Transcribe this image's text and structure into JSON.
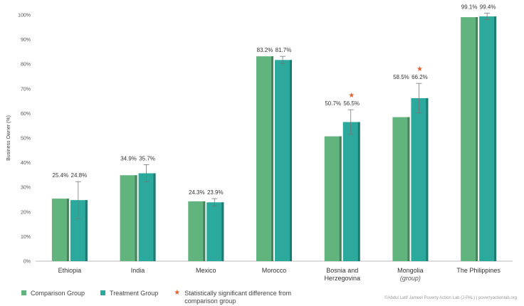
{
  "chart_data": {
    "type": "bar",
    "ylabel": "Business Owner (%)",
    "ylim": [
      0,
      100
    ],
    "yticks": [
      "0%",
      "10%",
      "20%",
      "30%",
      "40%",
      "50%",
      "60%",
      "70%",
      "80%",
      "90%",
      "100%"
    ],
    "categories": [
      "Ethiopia",
      "India",
      "Mexico",
      "Morocco",
      "Bosnia and Herzegovina",
      "Mongolia",
      "The Philippines"
    ],
    "category_lines": [
      [
        "Ethiopia"
      ],
      [
        "India"
      ],
      [
        "Mexico"
      ],
      [
        "Morocco"
      ],
      [
        "Bosnia and",
        "Herzegovina"
      ],
      [
        "Mongolia"
      ],
      [
        "The Philippines"
      ]
    ],
    "category_sublabels": [
      "",
      "",
      "",
      "",
      "",
      "(group)",
      ""
    ],
    "series": [
      {
        "name": "Comparison Group",
        "color": "#62b47f",
        "values": [
          25.4,
          34.9,
          24.3,
          83.2,
          50.7,
          58.5,
          99.1
        ],
        "labels": [
          "25.4%",
          "34.9%",
          "24.3%",
          "83.2%",
          "50.7%",
          "58.5%",
          "99.1%"
        ]
      },
      {
        "name": "Treatment Group",
        "color": "#2ba99d",
        "values": [
          24.8,
          35.7,
          23.9,
          81.7,
          56.5,
          66.2,
          99.4
        ],
        "labels": [
          "24.8%",
          "35.7%",
          "23.9%",
          "81.7%",
          "56.5%",
          "66.2%",
          "99.4%"
        ],
        "error": [
          7.5,
          3.5,
          1.5,
          1.5,
          5.0,
          6.0,
          1.3
        ],
        "significant": [
          false,
          false,
          false,
          false,
          true,
          true,
          false
        ]
      }
    ],
    "legend": {
      "position": "bottom-left",
      "significance_label": "Statistically significant difference from comparison group"
    },
    "grid": false
  },
  "credit": "©Abdul Latif Jameel Poverty Action Lab (J-PAL) | povertyactionlab.org"
}
